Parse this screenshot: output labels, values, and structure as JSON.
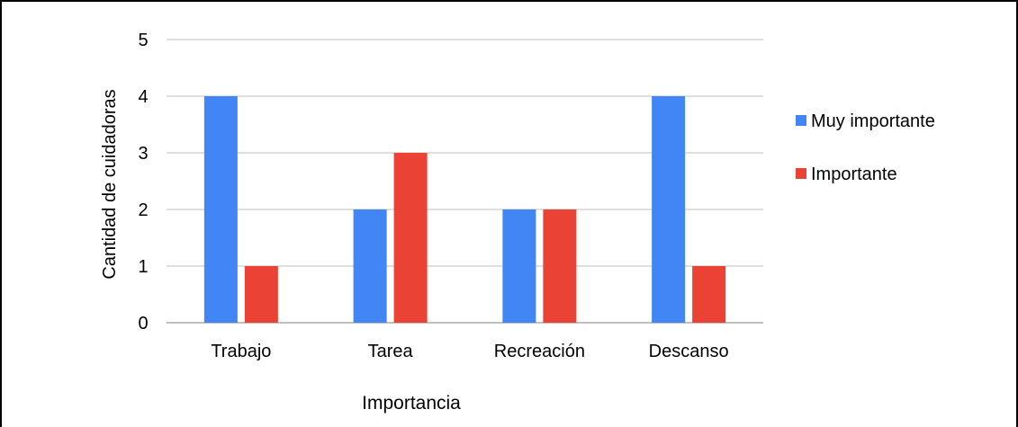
{
  "chart_data": {
    "type": "bar",
    "title": "",
    "xlabel": "Importancia",
    "ylabel": "Cantidad de cuidadoras",
    "categories": [
      "Trabajo",
      "Tarea",
      "Recreación",
      "Descanso"
    ],
    "series": [
      {
        "name": "Muy importante",
        "color": "#4285f4",
        "values": [
          4,
          2,
          2,
          4
        ]
      },
      {
        "name": "Importante",
        "color": "#ea4335",
        "values": [
          1,
          3,
          2,
          1
        ]
      }
    ],
    "ylim": [
      0,
      5
    ],
    "yticks": [
      "0",
      "1",
      "2",
      "3",
      "4",
      "5"
    ],
    "grid": true,
    "gridColor": "#cccccc",
    "legend": "right"
  }
}
